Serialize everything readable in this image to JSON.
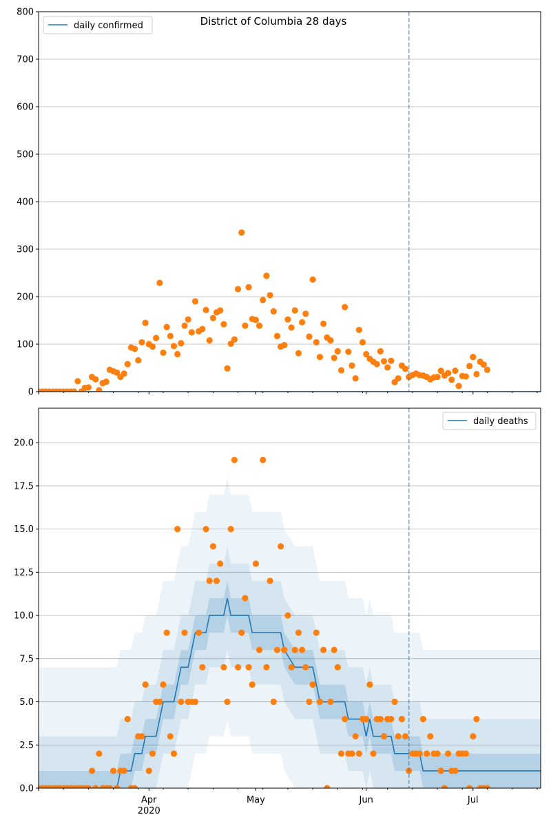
{
  "colors": {
    "line": "#1f77b4",
    "dots": "#ff7f0e",
    "band": "#1f77b4",
    "grid": "#b0b0b0",
    "vline": "#1f77b4"
  },
  "chart_data": [
    {
      "type": "scatter",
      "title": "District of Columbia 28 days",
      "legend": {
        "label": "daily confirmed",
        "position": "top-left"
      },
      "ylim": [
        0,
        800
      ],
      "yticks": [
        0,
        100,
        200,
        300,
        400,
        500,
        600,
        700,
        800
      ],
      "ytick_labels": [
        "0",
        "100",
        "200",
        "300",
        "400",
        "500",
        "600",
        "700",
        "800"
      ],
      "xlim": [
        "2020-03-01",
        "2020-07-20"
      ],
      "grid": true,
      "vline_date": "2020-06-13",
      "observed": [
        [
          "2020-03-01",
          0
        ],
        [
          "2020-03-02",
          0
        ],
        [
          "2020-03-03",
          0
        ],
        [
          "2020-03-04",
          0
        ],
        [
          "2020-03-05",
          0
        ],
        [
          "2020-03-06",
          0
        ],
        [
          "2020-03-07",
          0
        ],
        [
          "2020-03-08",
          0
        ],
        [
          "2020-03-09",
          0
        ],
        [
          "2020-03-10",
          0
        ],
        [
          "2020-03-11",
          0
        ],
        [
          "2020-03-12",
          22
        ],
        [
          "2020-03-13",
          0
        ],
        [
          "2020-03-14",
          8
        ],
        [
          "2020-03-15",
          9
        ],
        [
          "2020-03-16",
          31
        ],
        [
          "2020-03-17",
          26
        ],
        [
          "2020-03-18",
          3
        ],
        [
          "2020-03-19",
          18
        ],
        [
          "2020-03-20",
          21
        ],
        [
          "2020-03-21",
          46
        ],
        [
          "2020-03-22",
          43
        ],
        [
          "2020-03-23",
          40
        ],
        [
          "2020-03-24",
          31
        ],
        [
          "2020-03-25",
          38
        ],
        [
          "2020-03-26",
          58
        ],
        [
          "2020-03-27",
          93
        ],
        [
          "2020-03-28",
          90
        ],
        [
          "2020-03-29",
          66
        ],
        [
          "2020-03-30",
          104
        ],
        [
          "2020-03-31",
          145
        ],
        [
          "2020-04-01",
          100
        ],
        [
          "2020-04-02",
          95
        ],
        [
          "2020-04-03",
          113
        ],
        [
          "2020-04-04",
          229
        ],
        [
          "2020-04-05",
          82
        ],
        [
          "2020-04-06",
          136
        ],
        [
          "2020-04-07",
          117
        ],
        [
          "2020-04-08",
          96
        ],
        [
          "2020-04-09",
          79
        ],
        [
          "2020-04-10",
          102
        ],
        [
          "2020-04-11",
          139
        ],
        [
          "2020-04-12",
          152
        ],
        [
          "2020-04-13",
          125
        ],
        [
          "2020-04-14",
          190
        ],
        [
          "2020-04-15",
          127
        ],
        [
          "2020-04-16",
          132
        ],
        [
          "2020-04-17",
          172
        ],
        [
          "2020-04-18",
          108
        ],
        [
          "2020-04-19",
          155
        ],
        [
          "2020-04-20",
          167
        ],
        [
          "2020-04-21",
          171
        ],
        [
          "2020-04-22",
          142
        ],
        [
          "2020-04-23",
          49
        ],
        [
          "2020-04-24",
          101
        ],
        [
          "2020-04-25",
          110
        ],
        [
          "2020-04-26",
          216
        ],
        [
          "2020-04-27",
          335
        ],
        [
          "2020-04-28",
          139
        ],
        [
          "2020-04-29",
          220
        ],
        [
          "2020-04-30",
          153
        ],
        [
          "2020-05-01",
          151
        ],
        [
          "2020-05-02",
          139
        ],
        [
          "2020-05-03",
          193
        ],
        [
          "2020-05-04",
          244
        ],
        [
          "2020-05-05",
          203
        ],
        [
          "2020-05-06",
          169
        ],
        [
          "2020-05-07",
          117
        ],
        [
          "2020-05-08",
          95
        ],
        [
          "2020-05-09",
          98
        ],
        [
          "2020-05-10",
          152
        ],
        [
          "2020-05-11",
          135
        ],
        [
          "2020-05-12",
          171
        ],
        [
          "2020-05-13",
          81
        ],
        [
          "2020-05-14",
          146
        ],
        [
          "2020-05-15",
          164
        ],
        [
          "2020-05-16",
          116
        ],
        [
          "2020-05-17",
          236
        ],
        [
          "2020-05-18",
          104
        ],
        [
          "2020-05-19",
          73
        ],
        [
          "2020-05-20",
          143
        ],
        [
          "2020-05-21",
          114
        ],
        [
          "2020-05-22",
          108
        ],
        [
          "2020-05-23",
          71
        ],
        [
          "2020-05-24",
          85
        ],
        [
          "2020-05-25",
          45
        ],
        [
          "2020-05-26",
          178
        ],
        [
          "2020-05-27",
          84
        ],
        [
          "2020-05-28",
          55
        ],
        [
          "2020-05-29",
          28
        ],
        [
          "2020-05-30",
          130
        ],
        [
          "2020-05-31",
          104
        ],
        [
          "2020-06-01",
          79
        ],
        [
          "2020-06-02",
          69
        ],
        [
          "2020-06-03",
          63
        ],
        [
          "2020-06-04",
          58
        ],
        [
          "2020-06-05",
          85
        ],
        [
          "2020-06-06",
          64
        ],
        [
          "2020-06-07",
          51
        ],
        [
          "2020-06-08",
          65
        ],
        [
          "2020-06-09",
          20
        ],
        [
          "2020-06-10",
          28
        ],
        [
          "2020-06-11",
          55
        ],
        [
          "2020-06-12",
          48
        ],
        [
          "2020-06-13",
          31
        ],
        [
          "2020-06-14",
          35
        ],
        [
          "2020-06-15",
          38
        ],
        [
          "2020-06-16",
          35
        ],
        [
          "2020-06-17",
          34
        ],
        [
          "2020-06-18",
          31
        ],
        [
          "2020-06-19",
          26
        ],
        [
          "2020-06-20",
          30
        ],
        [
          "2020-06-21",
          31
        ],
        [
          "2020-06-22",
          44
        ],
        [
          "2020-06-23",
          34
        ],
        [
          "2020-06-24",
          39
        ],
        [
          "2020-06-25",
          25
        ],
        [
          "2020-06-26",
          44
        ],
        [
          "2020-06-27",
          12
        ],
        [
          "2020-06-28",
          33
        ],
        [
          "2020-06-29",
          32
        ],
        [
          "2020-06-30",
          54
        ],
        [
          "2020-07-01",
          73
        ],
        [
          "2020-07-02",
          37
        ],
        [
          "2020-07-03",
          63
        ],
        [
          "2020-07-04",
          57
        ],
        [
          "2020-07-05",
          46
        ]
      ]
    },
    {
      "type": "line",
      "title": "",
      "legend": {
        "label": "daily deaths",
        "position": "top-right"
      },
      "ylim": [
        0,
        22
      ],
      "yticks": [
        0,
        2.5,
        5,
        7.5,
        10,
        12.5,
        15,
        17.5,
        20
      ],
      "ytick_labels": [
        "0.0",
        "2.5",
        "5.0",
        "7.5",
        "10.0",
        "12.5",
        "15.0",
        "17.5",
        "20.0"
      ],
      "xlim": [
        "2020-03-01",
        "2020-07-20"
      ],
      "xticks": [
        {
          "date": "2020-04-01",
          "label": "Apr",
          "sublabel": "2020"
        },
        {
          "date": "2020-05-01",
          "label": "May"
        },
        {
          "date": "2020-06-01",
          "label": "Jun"
        },
        {
          "date": "2020-07-01",
          "label": "Jul"
        }
      ],
      "grid": true,
      "vline_date": "2020-06-13",
      "line_knots": [
        [
          "2020-03-01",
          0
        ],
        [
          "2020-03-23",
          0
        ],
        [
          "2020-03-24",
          1
        ],
        [
          "2020-03-27",
          1
        ],
        [
          "2020-03-28",
          2
        ],
        [
          "2020-03-30",
          2
        ],
        [
          "2020-03-31",
          3
        ],
        [
          "2020-04-03",
          3
        ],
        [
          "2020-04-04",
          4
        ],
        [
          "2020-04-05",
          5
        ],
        [
          "2020-04-07",
          5
        ],
        [
          "2020-04-08",
          5
        ],
        [
          "2020-04-09",
          6
        ],
        [
          "2020-04-10",
          7
        ],
        [
          "2020-04-12",
          7
        ],
        [
          "2020-04-13",
          8
        ],
        [
          "2020-04-14",
          9
        ],
        [
          "2020-04-17",
          9
        ],
        [
          "2020-04-18",
          10
        ],
        [
          "2020-04-22",
          10
        ],
        [
          "2020-04-23",
          11
        ],
        [
          "2020-04-24",
          10
        ],
        [
          "2020-04-29",
          10
        ],
        [
          "2020-04-30",
          9
        ],
        [
          "2020-05-08",
          9
        ],
        [
          "2020-05-09",
          8
        ],
        [
          "2020-05-12",
          7
        ],
        [
          "2020-05-17",
          7
        ],
        [
          "2020-05-18",
          6
        ],
        [
          "2020-05-19",
          5
        ],
        [
          "2020-05-26",
          5
        ],
        [
          "2020-05-27",
          4
        ],
        [
          "2020-05-31",
          4
        ],
        [
          "2020-06-01",
          3
        ],
        [
          "2020-06-02",
          4
        ],
        [
          "2020-06-03",
          3
        ],
        [
          "2020-06-08",
          3
        ],
        [
          "2020-06-09",
          2
        ],
        [
          "2020-06-16",
          2
        ],
        [
          "2020-06-17",
          1
        ],
        [
          "2020-06-24",
          1
        ],
        [
          "2020-07-20",
          1
        ]
      ],
      "bands": [
        {
          "offset": 1,
          "opacity": 0.18
        },
        {
          "offset": 3,
          "opacity": 0.11
        },
        {
          "offset": 7,
          "opacity": 0.08
        }
      ],
      "observed": [
        [
          "2020-03-01",
          0
        ],
        [
          "2020-03-02",
          0
        ],
        [
          "2020-03-03",
          0
        ],
        [
          "2020-03-04",
          0
        ],
        [
          "2020-03-05",
          0
        ],
        [
          "2020-03-06",
          0
        ],
        [
          "2020-03-07",
          0
        ],
        [
          "2020-03-08",
          0
        ],
        [
          "2020-03-09",
          0
        ],
        [
          "2020-03-10",
          0
        ],
        [
          "2020-03-11",
          0
        ],
        [
          "2020-03-12",
          0
        ],
        [
          "2020-03-13",
          0
        ],
        [
          "2020-03-14",
          0
        ],
        [
          "2020-03-15",
          0
        ],
        [
          "2020-03-16",
          1
        ],
        [
          "2020-03-17",
          0
        ],
        [
          "2020-03-18",
          2
        ],
        [
          "2020-03-19",
          0
        ],
        [
          "2020-03-20",
          0
        ],
        [
          "2020-03-21",
          0
        ],
        [
          "2020-03-22",
          1
        ],
        [
          "2020-03-23",
          0
        ],
        [
          "2020-03-24",
          1
        ],
        [
          "2020-03-25",
          1
        ],
        [
          "2020-03-26",
          4
        ],
        [
          "2020-03-27",
          0
        ],
        [
          "2020-03-28",
          0
        ],
        [
          "2020-03-29",
          3
        ],
        [
          "2020-03-30",
          3
        ],
        [
          "2020-03-31",
          6
        ],
        [
          "2020-04-01",
          1
        ],
        [
          "2020-04-02",
          2
        ],
        [
          "2020-04-03",
          5
        ],
        [
          "2020-04-04",
          5
        ],
        [
          "2020-04-05",
          6
        ],
        [
          "2020-04-06",
          9
        ],
        [
          "2020-04-07",
          3
        ],
        [
          "2020-04-08",
          2
        ],
        [
          "2020-04-09",
          15
        ],
        [
          "2020-04-10",
          5
        ],
        [
          "2020-04-11",
          9
        ],
        [
          "2020-04-12",
          5
        ],
        [
          "2020-04-13",
          5
        ],
        [
          "2020-04-14",
          5
        ],
        [
          "2020-04-15",
          9
        ],
        [
          "2020-04-16",
          7
        ],
        [
          "2020-04-17",
          15
        ],
        [
          "2020-04-18",
          12
        ],
        [
          "2020-04-19",
          14
        ],
        [
          "2020-04-20",
          12
        ],
        [
          "2020-04-21",
          13
        ],
        [
          "2020-04-22",
          7
        ],
        [
          "2020-04-23",
          5
        ],
        [
          "2020-04-24",
          15
        ],
        [
          "2020-04-25",
          19
        ],
        [
          "2020-04-26",
          7
        ],
        [
          "2020-04-27",
          9
        ],
        [
          "2020-04-28",
          11
        ],
        [
          "2020-04-29",
          7
        ],
        [
          "2020-04-30",
          6
        ],
        [
          "2020-05-01",
          13
        ],
        [
          "2020-05-02",
          8
        ],
        [
          "2020-05-03",
          19
        ],
        [
          "2020-05-04",
          7
        ],
        [
          "2020-05-05",
          12
        ],
        [
          "2020-05-06",
          5
        ],
        [
          "2020-05-07",
          8
        ],
        [
          "2020-05-08",
          14
        ],
        [
          "2020-05-09",
          8
        ],
        [
          "2020-05-10",
          10
        ],
        [
          "2020-05-11",
          7
        ],
        [
          "2020-05-12",
          8
        ],
        [
          "2020-05-13",
          9
        ],
        [
          "2020-05-14",
          8
        ],
        [
          "2020-05-15",
          7
        ],
        [
          "2020-05-16",
          5
        ],
        [
          "2020-05-17",
          6
        ],
        [
          "2020-05-18",
          9
        ],
        [
          "2020-05-19",
          5
        ],
        [
          "2020-05-20",
          8
        ],
        [
          "2020-05-21",
          0
        ],
        [
          "2020-05-22",
          5
        ],
        [
          "2020-05-23",
          8
        ],
        [
          "2020-05-24",
          7
        ],
        [
          "2020-05-25",
          2
        ],
        [
          "2020-05-26",
          4
        ],
        [
          "2020-05-27",
          2
        ],
        [
          "2020-05-28",
          2
        ],
        [
          "2020-05-29",
          3
        ],
        [
          "2020-05-30",
          2
        ],
        [
          "2020-05-31",
          4
        ],
        [
          "2020-06-01",
          4
        ],
        [
          "2020-06-02",
          6
        ],
        [
          "2020-06-03",
          2
        ],
        [
          "2020-06-04",
          4
        ],
        [
          "2020-06-05",
          4
        ],
        [
          "2020-06-06",
          3
        ],
        [
          "2020-06-07",
          4
        ],
        [
          "2020-06-08",
          4
        ],
        [
          "2020-06-09",
          5
        ],
        [
          "2020-06-10",
          3
        ],
        [
          "2020-06-11",
          4
        ],
        [
          "2020-06-12",
          3
        ],
        [
          "2020-06-13",
          1
        ],
        [
          "2020-06-14",
          2
        ],
        [
          "2020-06-15",
          2
        ],
        [
          "2020-06-16",
          2
        ],
        [
          "2020-06-17",
          4
        ],
        [
          "2020-06-18",
          2
        ],
        [
          "2020-06-19",
          3
        ],
        [
          "2020-06-20",
          2
        ],
        [
          "2020-06-21",
          2
        ],
        [
          "2020-06-22",
          1
        ],
        [
          "2020-06-23",
          0
        ],
        [
          "2020-06-24",
          2
        ],
        [
          "2020-06-25",
          1
        ],
        [
          "2020-06-26",
          1
        ],
        [
          "2020-06-27",
          2
        ],
        [
          "2020-06-28",
          2
        ],
        [
          "2020-06-29",
          2
        ],
        [
          "2020-06-30",
          0
        ],
        [
          "2020-07-01",
          3
        ],
        [
          "2020-07-02",
          4
        ],
        [
          "2020-07-03",
          0
        ],
        [
          "2020-07-04",
          0
        ],
        [
          "2020-07-05",
          0
        ]
      ]
    }
  ]
}
